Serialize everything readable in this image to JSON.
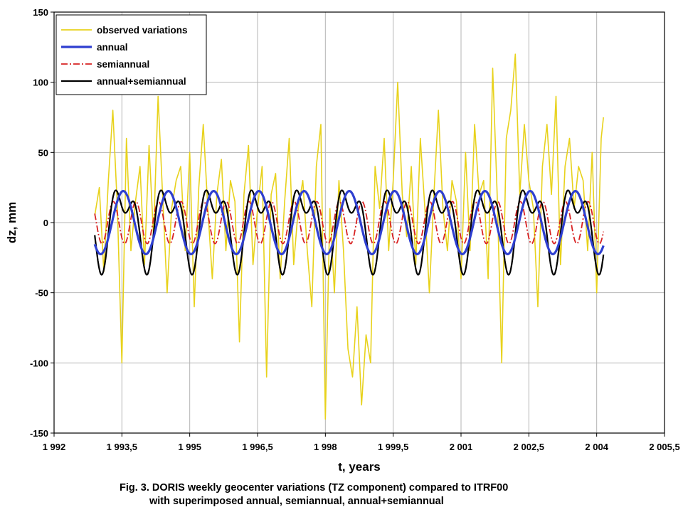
{
  "chart_data": {
    "type": "line",
    "title": "",
    "xlabel": "t, years",
    "ylabel": "dz, mm",
    "xlim": [
      1992,
      2005.5
    ],
    "ylim": [
      -150,
      150
    ],
    "x_ticks": [
      1992,
      1993.5,
      1995,
      1996.5,
      1998,
      1999.5,
      2001,
      2002.5,
      2004,
      2005.5
    ],
    "x_tick_labels": [
      "1 992",
      "1 993,5",
      "1 995",
      "1 996,5",
      "1 998",
      "1 999,5",
      "2 001",
      "2 002,5",
      "2 004",
      "2 005,5"
    ],
    "y_ticks": [
      150,
      100,
      50,
      0,
      -50,
      -100,
      -150
    ],
    "y_tick_labels": [
      "150",
      "100",
      "50",
      "0",
      "-50",
      "-100",
      "-150"
    ],
    "grid": true,
    "legend_position": "top-left",
    "x_start": 1992.9,
    "x_end": 2004.15,
    "series": [
      {
        "name": "observed variations",
        "color": "#e8d21c",
        "style": "solid",
        "x": [
          1992.9,
          1993.0,
          1993.1,
          1993.2,
          1993.3,
          1993.4,
          1993.5,
          1993.6,
          1993.7,
          1993.8,
          1993.9,
          1994.0,
          1994.1,
          1994.2,
          1994.3,
          1994.4,
          1994.5,
          1994.6,
          1994.7,
          1994.8,
          1994.9,
          1995.0,
          1995.1,
          1995.2,
          1995.3,
          1995.4,
          1995.5,
          1995.6,
          1995.7,
          1995.8,
          1995.9,
          1996.0,
          1996.1,
          1996.2,
          1996.3,
          1996.4,
          1996.5,
          1996.6,
          1996.7,
          1996.8,
          1996.9,
          1997.0,
          1997.1,
          1997.2,
          1997.3,
          1997.4,
          1997.5,
          1997.6,
          1997.7,
          1997.8,
          1997.9,
          1998.0,
          1998.1,
          1998.2,
          1998.3,
          1998.4,
          1998.5,
          1998.6,
          1998.7,
          1998.8,
          1998.9,
          1999.0,
          1999.1,
          1999.2,
          1999.3,
          1999.4,
          1999.5,
          1999.6,
          1999.7,
          1999.8,
          1999.9,
          2000.0,
          2000.1,
          2000.2,
          2000.3,
          2000.4,
          2000.5,
          2000.6,
          2000.7,
          2000.8,
          2000.9,
          2001.0,
          2001.1,
          2001.2,
          2001.3,
          2001.4,
          2001.5,
          2001.6,
          2001.7,
          2001.8,
          2001.9,
          2002.0,
          2002.1,
          2002.2,
          2002.3,
          2002.4,
          2002.5,
          2002.6,
          2002.7,
          2002.8,
          2002.9,
          2003.0,
          2003.1,
          2003.2,
          2003.3,
          2003.4,
          2003.5,
          2003.6,
          2003.7,
          2003.8,
          2003.9,
          2004.0,
          2004.1,
          2004.15
        ],
        "y": [
          5,
          25,
          -35,
          30,
          80,
          10,
          -100,
          60,
          -20,
          15,
          40,
          -30,
          55,
          -10,
          90,
          20,
          -50,
          10,
          30,
          40,
          -20,
          50,
          -60,
          25,
          70,
          10,
          -40,
          20,
          45,
          -20,
          30,
          15,
          -85,
          20,
          55,
          -30,
          10,
          40,
          -110,
          20,
          35,
          -40,
          15,
          60,
          -30,
          10,
          30,
          -20,
          -60,
          40,
          70,
          -140,
          10,
          -50,
          30,
          -20,
          -90,
          -110,
          -60,
          -130,
          -80,
          -100,
          40,
          10,
          60,
          -20,
          30,
          100,
          20,
          -10,
          40,
          -30,
          60,
          10,
          -50,
          20,
          80,
          10,
          -20,
          30,
          15,
          -40,
          50,
          -20,
          70,
          20,
          30,
          -40,
          110,
          20,
          -100,
          60,
          80,
          120,
          20,
          70,
          30,
          10,
          -60,
          40,
          70,
          20,
          90,
          -30,
          40,
          60,
          10,
          40,
          30,
          -20,
          50,
          -50,
          60,
          75
        ]
      },
      {
        "name": "annual",
        "color": "#2e3fd0",
        "style": "solid",
        "amplitude": 22.5,
        "period": 1,
        "peak_at": 1993.53
      },
      {
        "name": "semiannual",
        "color": "#d82222",
        "style": "dash-dot",
        "amplitude": 15,
        "period": 0.5,
        "peak_at": 1993.31
      },
      {
        "name": "annual+semiannual",
        "color": "#000000",
        "style": "solid"
      }
    ]
  },
  "caption": {
    "line1": "Fig. 3. DORIS weekly geocenter variations (TZ component) compared to ITRF00",
    "line2": "with superimposed annual, semiannual, annual+semiannual"
  }
}
